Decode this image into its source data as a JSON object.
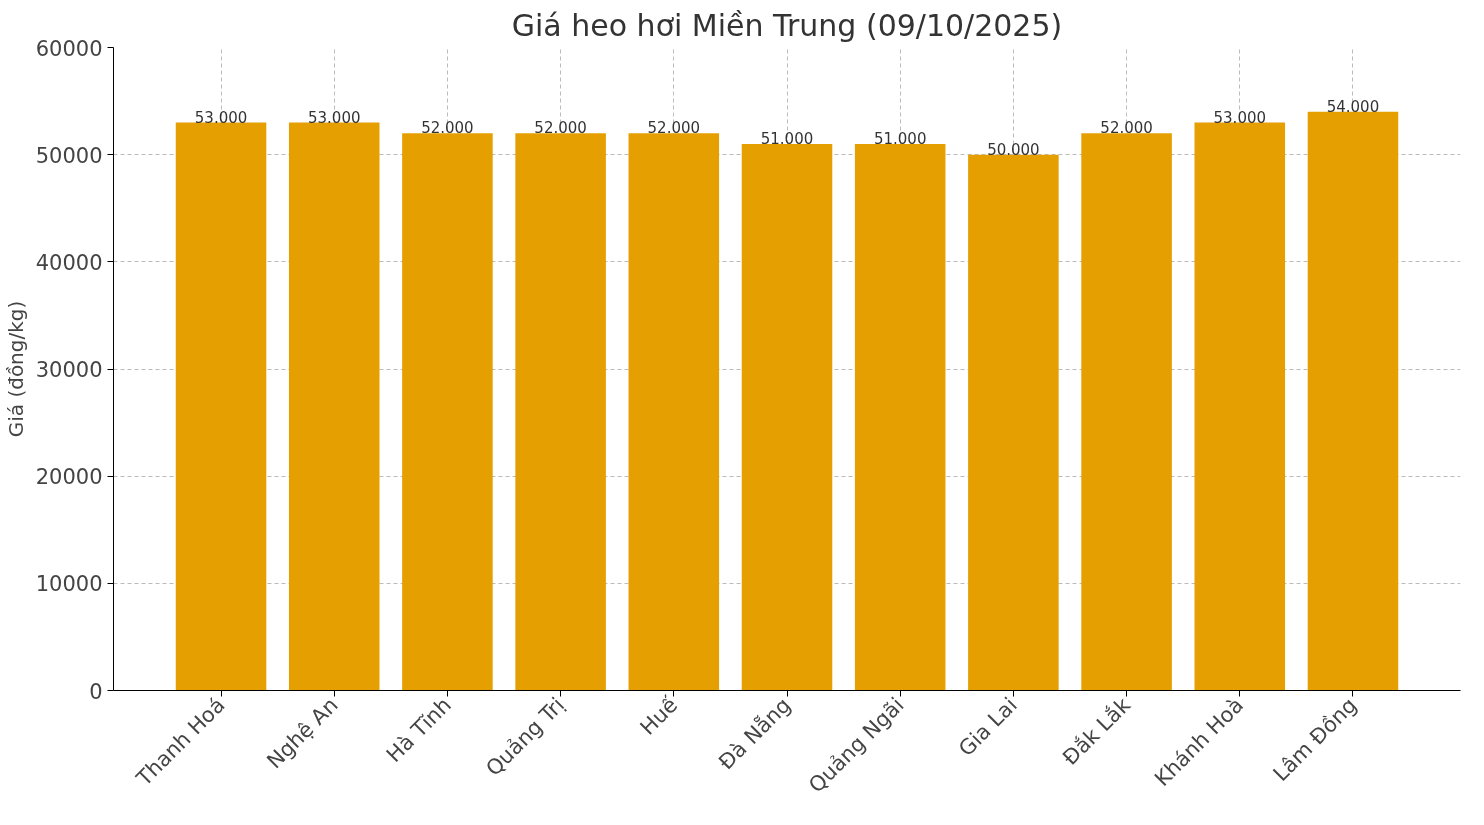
{
  "chart_data": {
    "type": "bar",
    "title": "Giá heo hơi Miền Trung (09/10/2025)",
    "ylabel": "Giá (đồng/kg)",
    "categories": [
      "Thanh Hoá",
      "Nghệ An",
      "Hà Tĩnh",
      "Quảng Trị",
      "Huế",
      "Đà Nẵng",
      "Quảng Ngãi",
      "Gia Lai",
      "Đắk Lắk",
      "Khánh Hoà",
      "Lâm Đồng"
    ],
    "values": [
      53000,
      53000,
      52000,
      52000,
      52000,
      51000,
      51000,
      50000,
      52000,
      53000,
      54000
    ],
    "value_labels": [
      "53.000",
      "53.000",
      "52.000",
      "52.000",
      "52.000",
      "51.000",
      "51.000",
      "50.000",
      "52.000",
      "53.000",
      "54.000"
    ],
    "color": "#e69f00",
    "ylim": [
      0,
      60000
    ],
    "yticks": [
      0,
      10000,
      20000,
      30000,
      40000,
      50000,
      60000
    ],
    "grid": true
  }
}
